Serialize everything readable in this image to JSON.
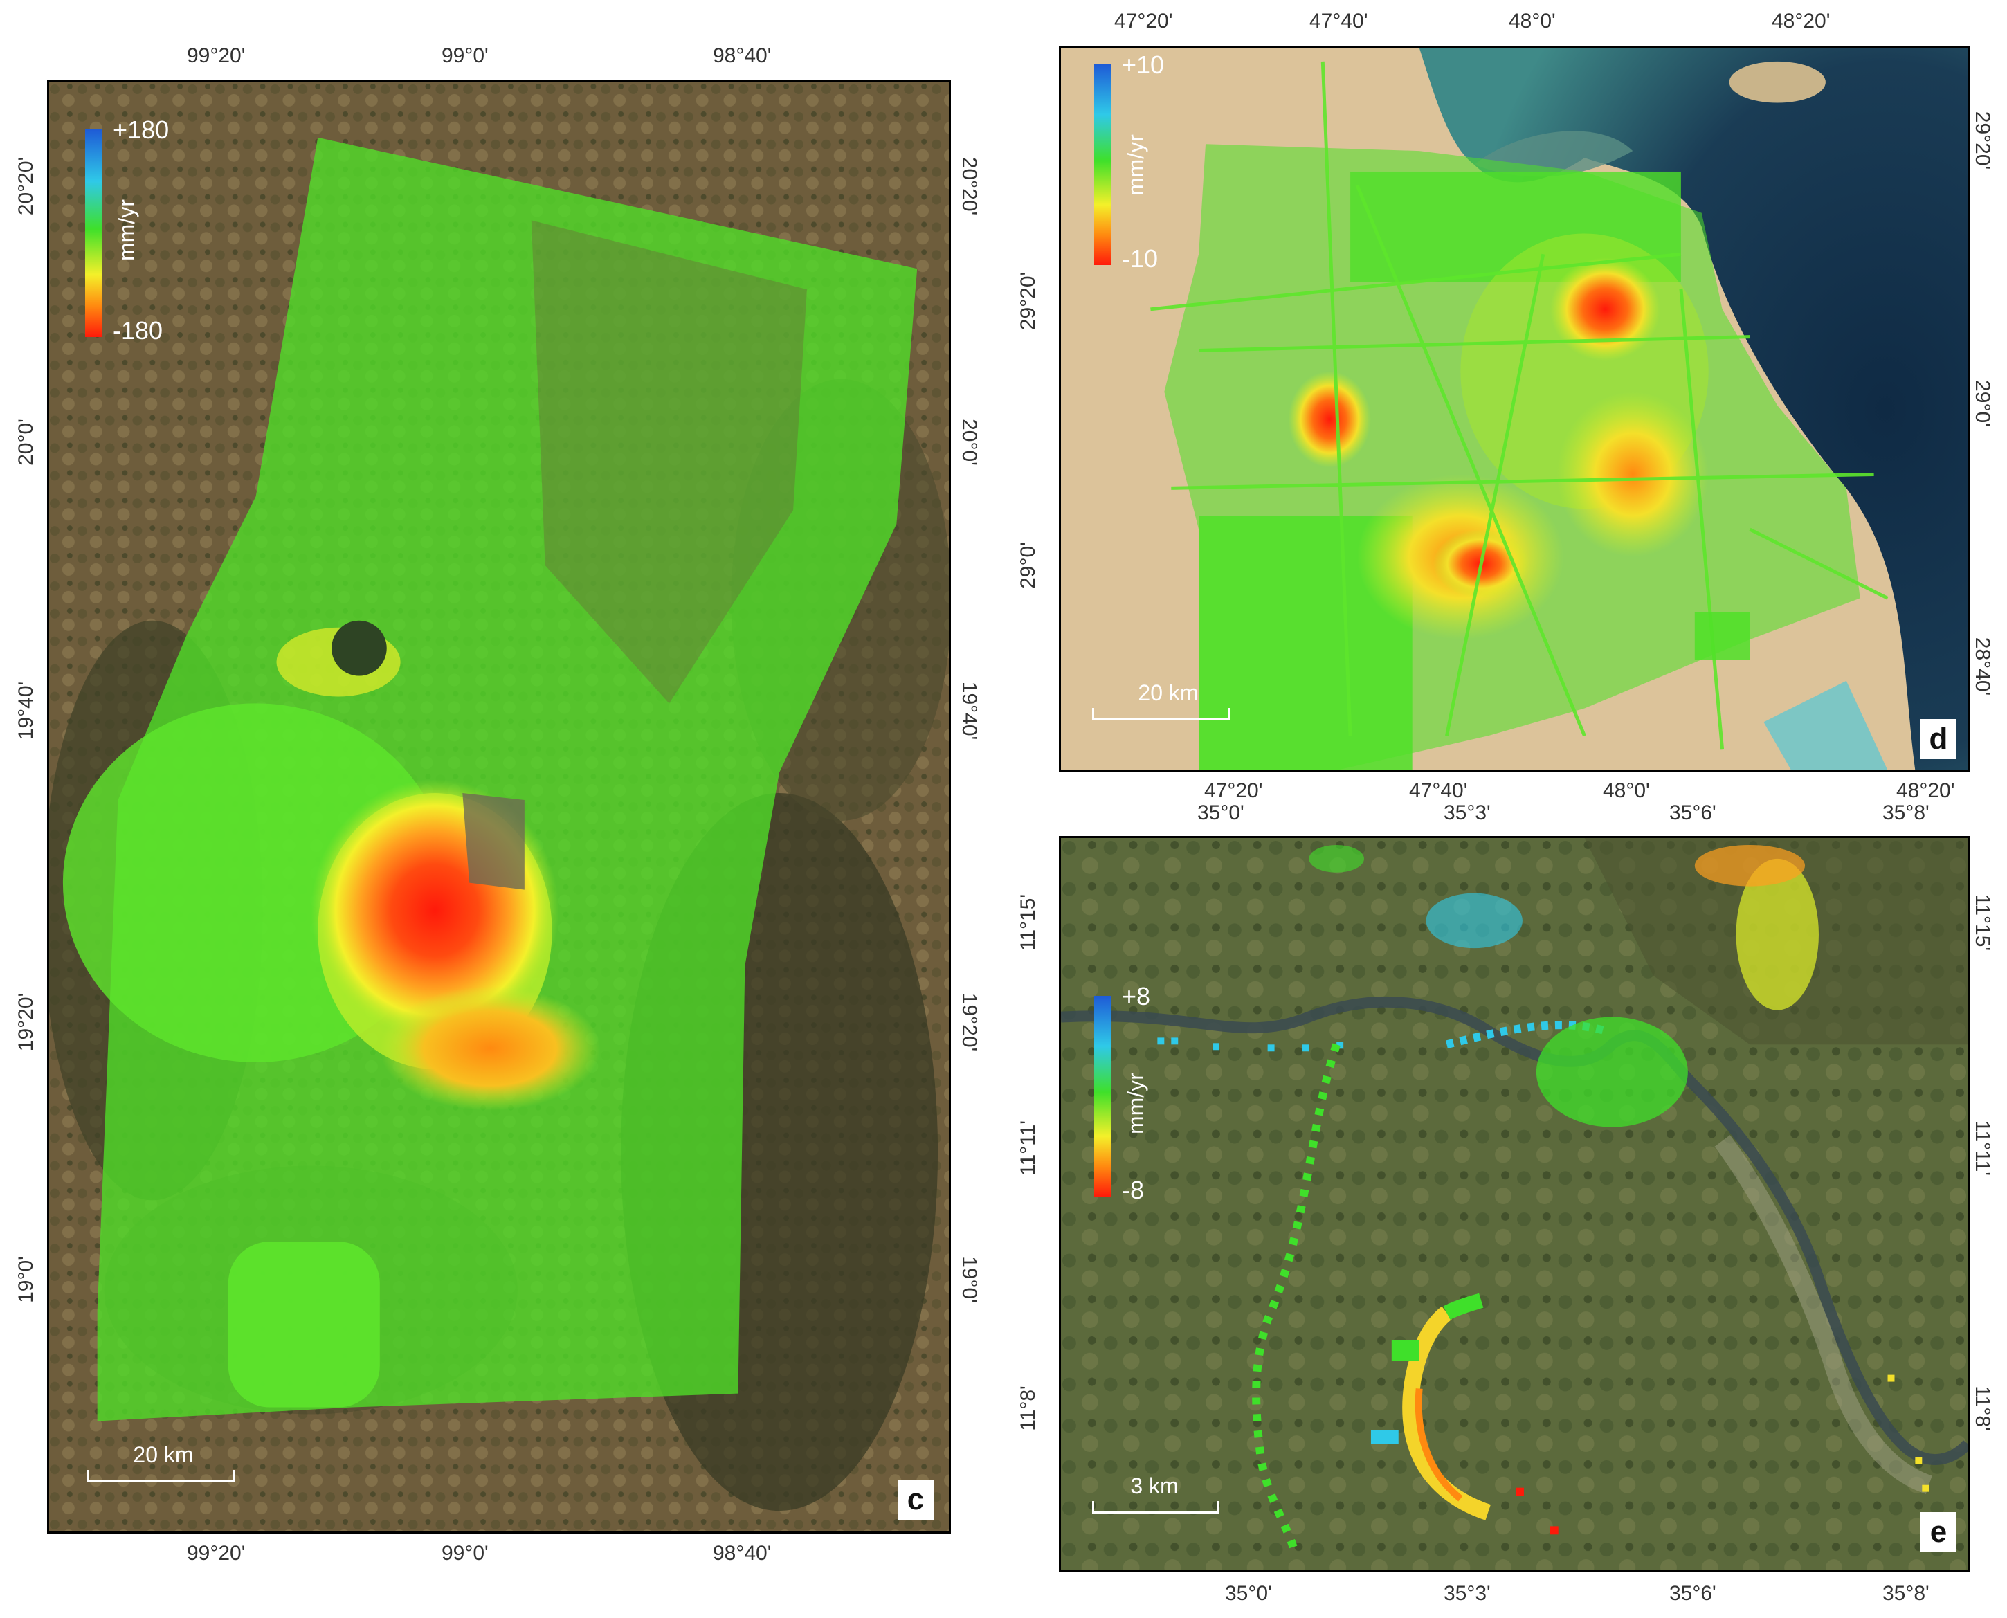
{
  "colors": {
    "ramp": [
      "#1e5bd6",
      "#2fc9e8",
      "#3fe02a",
      "#f4f02a",
      "#ff8a10",
      "#ff1a0a"
    ],
    "green": "#4fe028",
    "terrain_brown": "#7b6a45",
    "terrain_dark": "#3a3d24",
    "desert": "#dcc39a",
    "sea": "#14304a",
    "sea_mid": "#3d7f86"
  },
  "panels": {
    "c": {
      "label": "c",
      "top_ticks": [
        "99°20'",
        "99°0'",
        "98°40'"
      ],
      "bottom_ticks": [
        "99°20'",
        "99°0'",
        "98°40'"
      ],
      "left_ticks": [
        "20°20'",
        "20°0'",
        "19°40'",
        "19°20'",
        "19°0'"
      ],
      "right_ticks": [
        "20°20'",
        "20°0'",
        "19°40'",
        "19°20'",
        "19°0'"
      ],
      "legend": {
        "max": "+180",
        "min": "-180",
        "unit": "mm/yr"
      },
      "scale_text": "20 km"
    },
    "d": {
      "label": "d",
      "top_ticks": [
        "47°20'",
        "47°40'",
        "48°0'",
        "48°20'"
      ],
      "bottom_ticks": [
        "47°20'",
        "47°40'",
        "48°0'",
        "48°20'"
      ],
      "left_ticks": [
        "29°20'",
        "29°0'"
      ],
      "right_ticks": [
        "29°20'",
        "29°0'",
        "28°40'"
      ],
      "legend": {
        "max": "+10",
        "min": "-10",
        "unit": "mm/yr"
      },
      "scale_text": "20 km"
    },
    "e": {
      "label": "e",
      "top_ticks": [
        "35°0'",
        "35°3'",
        "35°6'",
        "35°8'"
      ],
      "bottom_ticks": [
        "35°0'",
        "35°3'",
        "35°6'",
        "35°8'"
      ],
      "left_ticks": [
        "11°15'",
        "11°11'",
        "11°8'"
      ],
      "right_ticks": [
        "11°15'",
        "11°11'",
        "11°8'"
      ],
      "legend": {
        "max": "+8",
        "min": "-8",
        "unit": "mm/yr"
      },
      "scale_text": "3 km"
    }
  }
}
